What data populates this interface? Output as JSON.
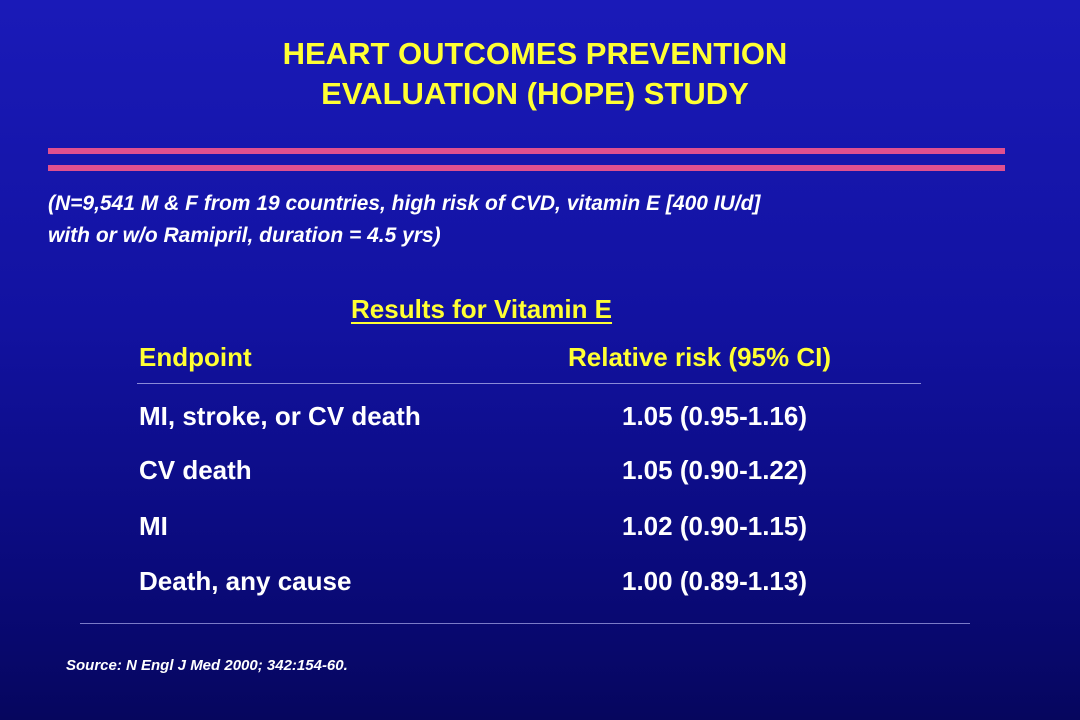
{
  "title": {
    "line1": "HEART OUTCOMES PREVENTION",
    "line2": "EVALUATION (HOPE) STUDY"
  },
  "subtitle": {
    "line1": "(N=9,541 M & F from 19 countries, high risk of CVD, vitamin E [400 IU/d]",
    "line2": "with or w/o Ramipril, duration = 4.5 yrs)"
  },
  "results": {
    "heading": "Results for Vitamin E",
    "columns": {
      "endpoint": "Endpoint",
      "relative_risk": "Relative risk (95% CI)"
    },
    "rows": [
      {
        "endpoint": "MI, stroke, or CV death",
        "relative_risk": "1.05 (0.95-1.16)"
      },
      {
        "endpoint": "CV death",
        "relative_risk": "1.05 (0.90-1.22)"
      },
      {
        "endpoint": "MI",
        "relative_risk": "1.02 (0.90-1.15)"
      },
      {
        "endpoint": "Death, any cause",
        "relative_risk": "1.00 (0.89-1.13)"
      }
    ]
  },
  "source": "Source: N Engl J Med 2000; 342:154-60.",
  "colors": {
    "background_top": "#1a1ab8",
    "background_bottom": "#06065e",
    "title_yellow": "#ffff33",
    "accent_rule": "#e0508f",
    "body_text": "#ffffff"
  }
}
